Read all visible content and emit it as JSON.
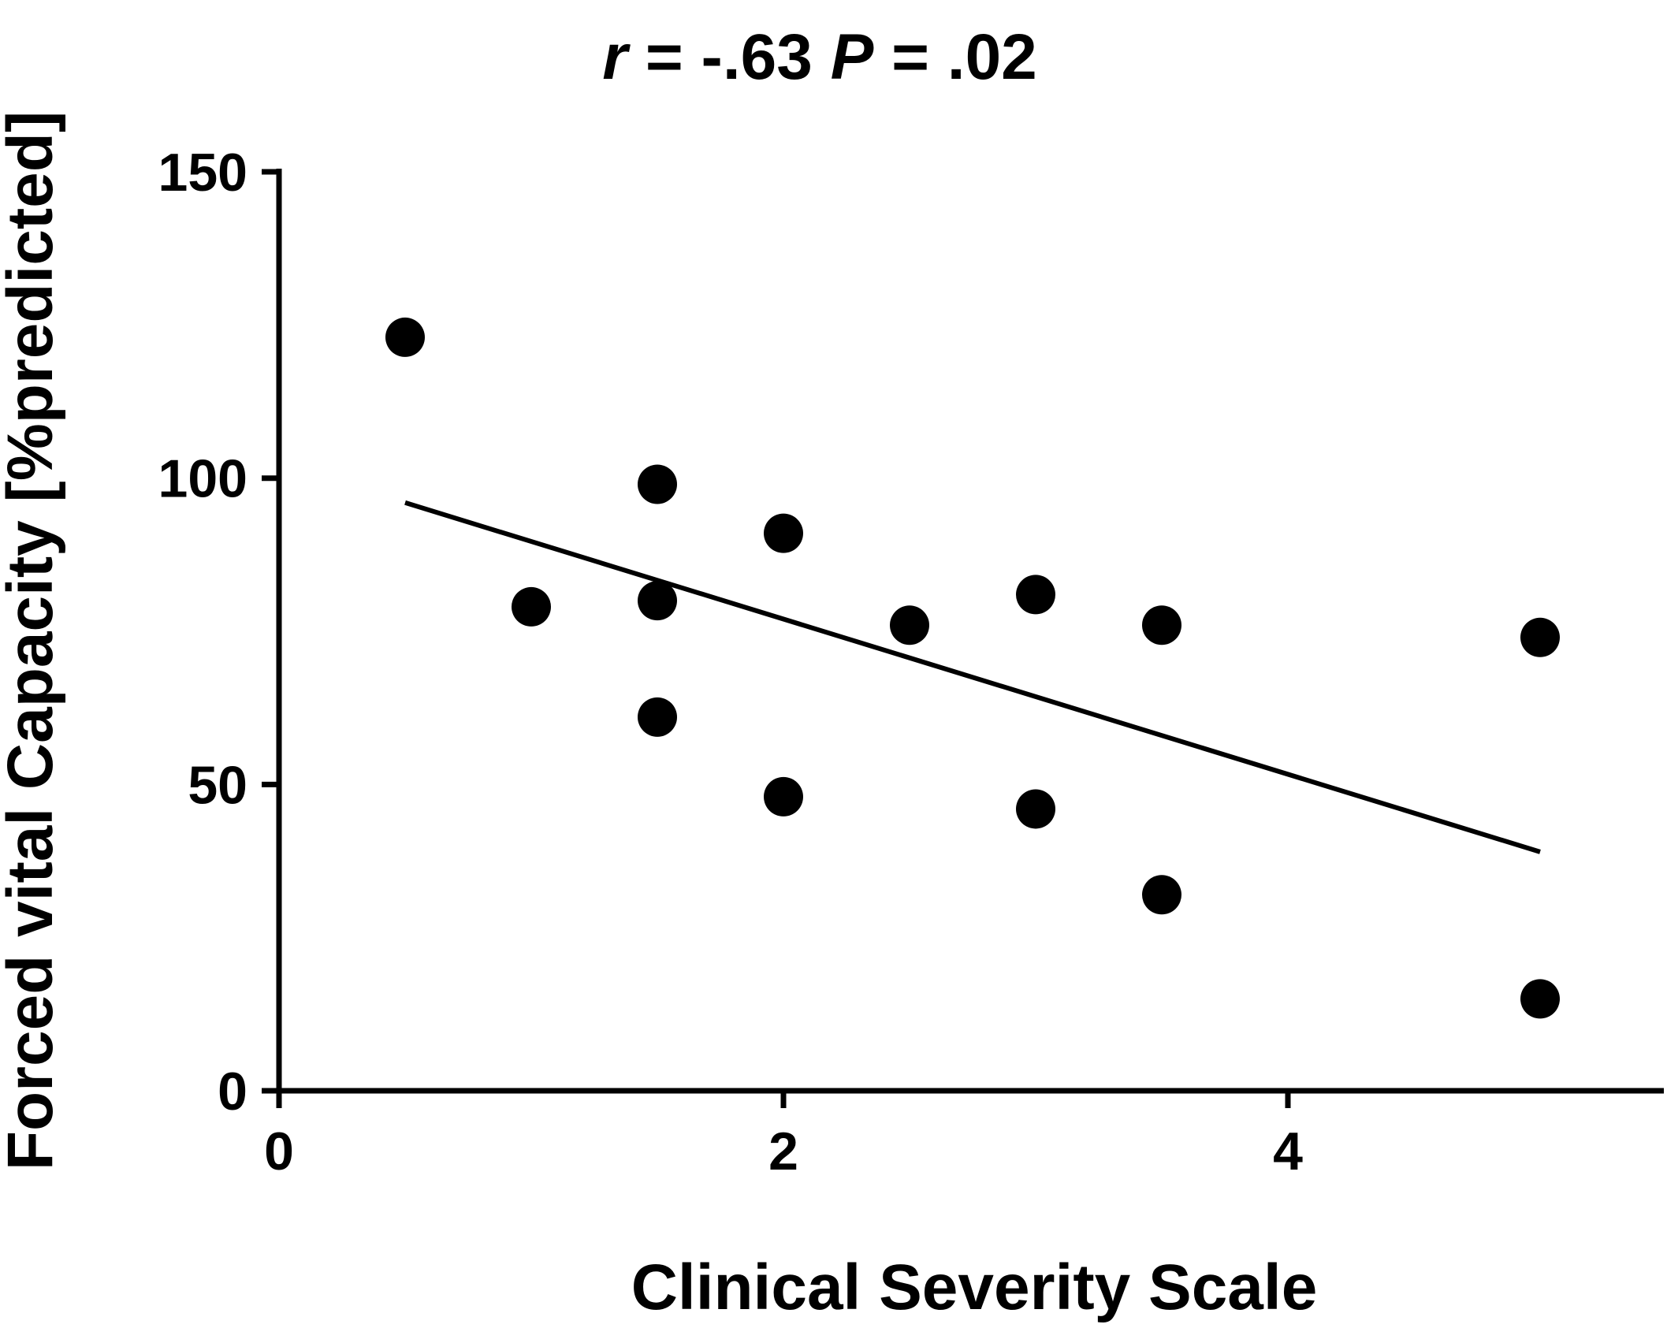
{
  "chart_data": {
    "type": "scatter",
    "title": {
      "r_symbol": "r",
      "r_text": " = -.63 ",
      "p_symbol": "P",
      "p_text": " = .02"
    },
    "xlabel": "Clinical Severity Scale",
    "ylabel": "Forced vital Capacity [%predicted]",
    "xlim": [
      0,
      5.5
    ],
    "ylim": [
      0,
      150
    ],
    "xticks": [
      0,
      2,
      4
    ],
    "xtick_labels": [
      "0",
      "2",
      "4"
    ],
    "yticks": [
      0,
      50,
      100,
      150
    ],
    "ytick_labels": [
      "0",
      "50",
      "100",
      "150"
    ],
    "grid": false,
    "points": [
      {
        "x": 0.5,
        "y": 123
      },
      {
        "x": 1.0,
        "y": 79
      },
      {
        "x": 1.5,
        "y": 99
      },
      {
        "x": 1.5,
        "y": 80
      },
      {
        "x": 1.5,
        "y": 61
      },
      {
        "x": 2.0,
        "y": 91
      },
      {
        "x": 2.0,
        "y": 48
      },
      {
        "x": 2.5,
        "y": 76
      },
      {
        "x": 3.0,
        "y": 81
      },
      {
        "x": 3.0,
        "y": 46
      },
      {
        "x": 3.5,
        "y": 76
      },
      {
        "x": 3.5,
        "y": 32
      },
      {
        "x": 5.0,
        "y": 74
      },
      {
        "x": 5.0,
        "y": 15
      }
    ],
    "regression_line": {
      "x_start": 0.5,
      "y_start": 96,
      "x_end": 5.0,
      "y_end": 39
    },
    "colors": {
      "points": "#000000",
      "line": "#000000",
      "background": "#ffffff"
    }
  }
}
